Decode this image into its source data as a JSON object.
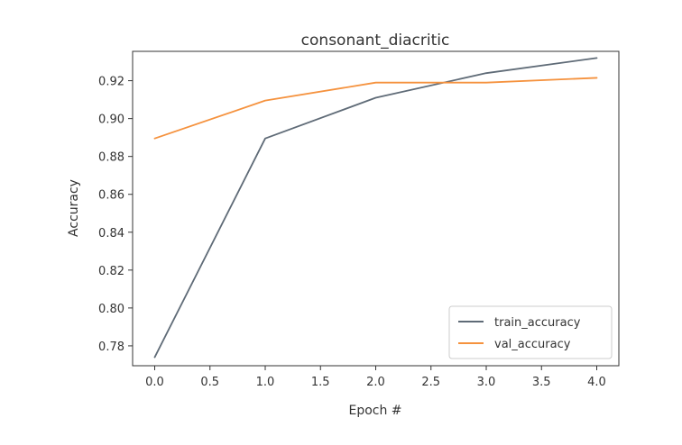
{
  "chart_data": {
    "type": "line",
    "title": "consonant_diacritic",
    "xlabel": "Epoch #",
    "ylabel": "Accuracy",
    "xlim": [
      -0.2,
      4.2
    ],
    "ylim": [
      0.7695,
      0.9355
    ],
    "xticks": [
      0.0,
      0.5,
      1.0,
      1.5,
      2.0,
      2.5,
      3.0,
      3.5,
      4.0
    ],
    "xtick_labels": [
      "0.0",
      "0.5",
      "1.0",
      "1.5",
      "2.0",
      "2.5",
      "3.0",
      "3.5",
      "4.0"
    ],
    "yticks": [
      0.78,
      0.8,
      0.82,
      0.84,
      0.86,
      0.88,
      0.9,
      0.92
    ],
    "ytick_labels": [
      "0.78",
      "0.80",
      "0.82",
      "0.84",
      "0.86",
      "0.88",
      "0.90",
      "0.92"
    ],
    "grid": false,
    "legend_position": "bottom-right",
    "x": [
      0,
      1,
      2,
      3,
      4
    ],
    "series": [
      {
        "name": "train_accuracy",
        "color": "#5f6b77",
        "values": [
          0.774,
          0.8895,
          0.911,
          0.924,
          0.932
        ]
      },
      {
        "name": "val_accuracy",
        "color": "#f5923e",
        "values": [
          0.8895,
          0.9095,
          0.919,
          0.919,
          0.9215
        ]
      }
    ]
  }
}
